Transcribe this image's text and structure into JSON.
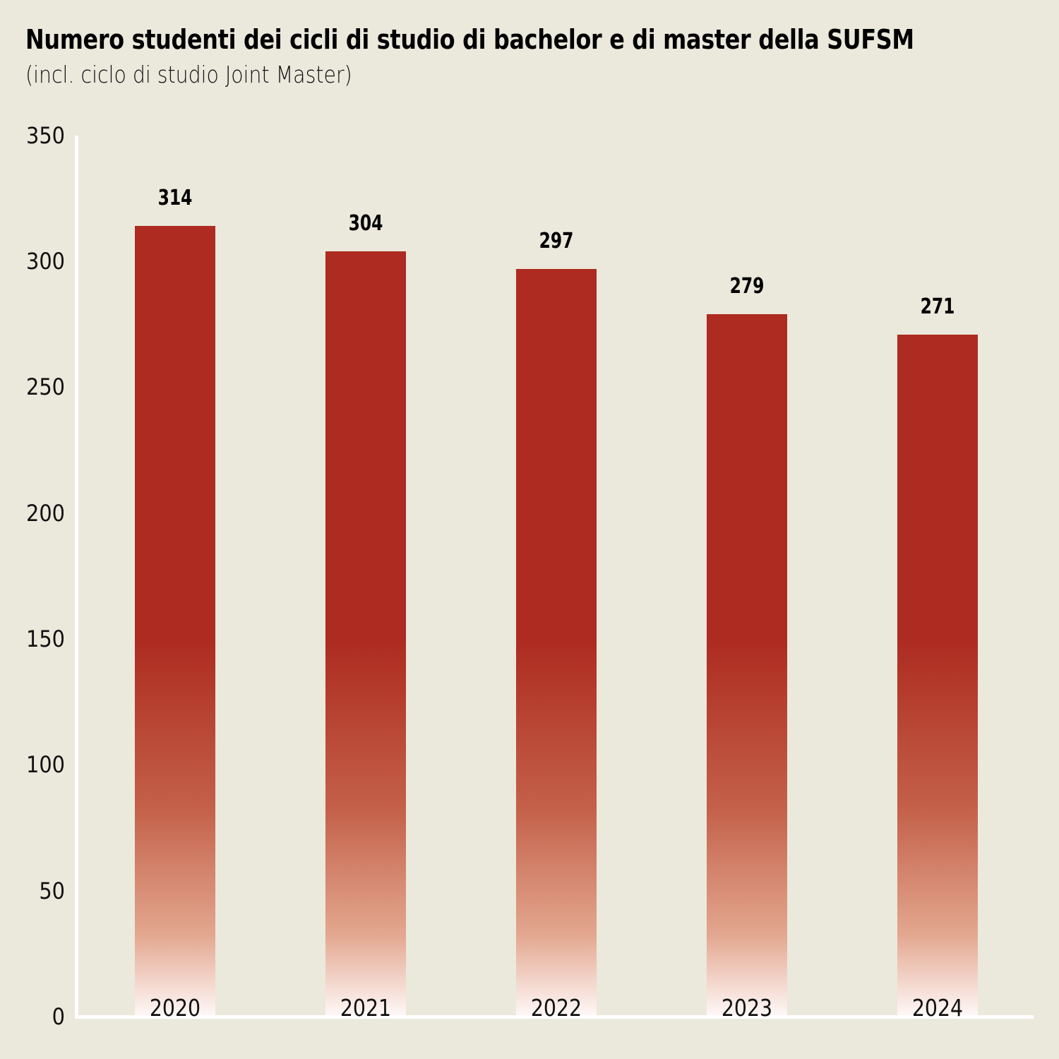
{
  "header": {
    "title": "Numero studenti dei cicli di studio di bachelor e di master della SUFSM",
    "subtitle": "(incl. ciclo di studio Joint Master)"
  },
  "colors": {
    "background": "#ebe8dc",
    "bar_top": "#ad2b20",
    "bar_bottom": "#fffafa",
    "axis": "#ffffff"
  },
  "axis": {
    "y_ticks": [
      "0",
      "50",
      "100",
      "150",
      "200",
      "250",
      "300",
      "350"
    ]
  },
  "bars": [
    {
      "category": "2020",
      "value": "314"
    },
    {
      "category": "2021",
      "value": "304"
    },
    {
      "category": "2022",
      "value": "297"
    },
    {
      "category": "2023",
      "value": "279"
    },
    {
      "category": "2024",
      "value": "271"
    }
  ],
  "chart_data": {
    "type": "bar",
    "title": "Numero studenti dei cicli di studio di bachelor e di master della SUFSM",
    "subtitle": "(incl. ciclo di studio Joint Master)",
    "categories": [
      "2020",
      "2021",
      "2022",
      "2023",
      "2024"
    ],
    "values": [
      314,
      304,
      297,
      279,
      271
    ],
    "xlabel": "",
    "ylabel": "",
    "ylim": [
      0,
      350
    ],
    "y_ticks": [
      0,
      50,
      100,
      150,
      200,
      250,
      300,
      350
    ],
    "grid": false,
    "legend": null,
    "data_labels": true,
    "bar_style": "vertical gradient from dark red (#ad2b20) at top to near-white at base"
  }
}
